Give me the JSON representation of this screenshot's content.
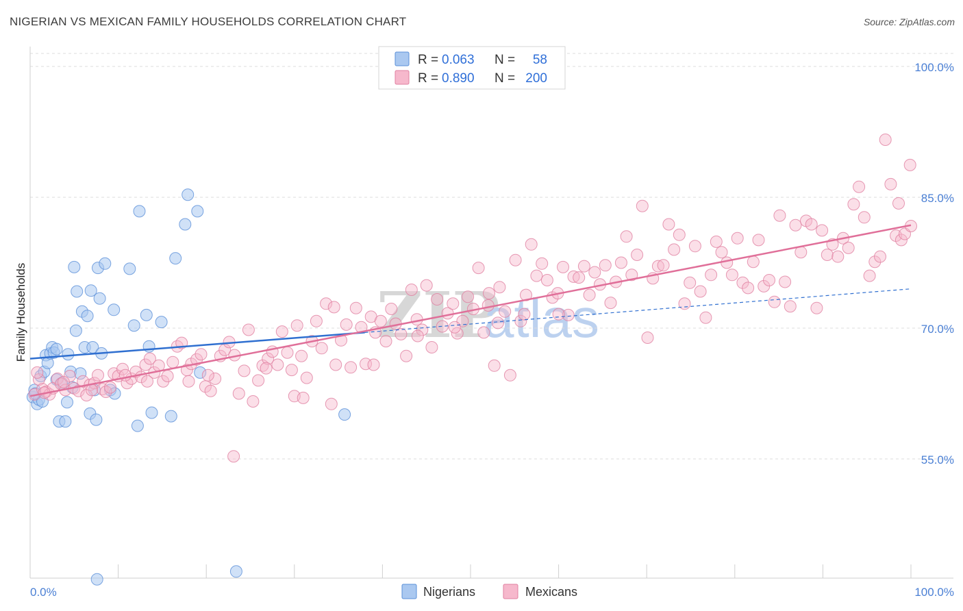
{
  "title": "NIGERIAN VS MEXICAN FAMILY HOUSEHOLDS CORRELATION CHART",
  "source": "Source: ZipAtlas.com",
  "watermark": {
    "zip": "ZIP",
    "atlas": "atlas"
  },
  "chart_data": {
    "type": "scatter",
    "title": "NIGERIAN VS MEXICAN FAMILY HOUSEHOLDS CORRELATION CHART",
    "xlabel": "",
    "ylabel": "Family Households",
    "xlim": [
      0,
      100
    ],
    "ylim": [
      40,
      102
    ],
    "x_tick_labels": {
      "left": "0.0%",
      "right": "100.0%"
    },
    "y_ticks": [
      {
        "value": 100,
        "label": "100.0%"
      },
      {
        "value": 85,
        "label": "85.0%"
      },
      {
        "value": 70,
        "label": "70.0%"
      },
      {
        "value": 55,
        "label": "55.0%"
      }
    ],
    "legend_stats": [
      {
        "r_label": "R =",
        "r_value": "0.063",
        "n_label": "N =",
        "n_value": "58",
        "color": "#aac8f0",
        "edge": "#5a8fd8"
      },
      {
        "r_label": "R =",
        "r_value": "0.890",
        "n_label": "N =",
        "n_value": "200",
        "color": "#f6b8cc",
        "edge": "#e07fa0"
      }
    ],
    "series": [
      {
        "name": "Nigerians",
        "color": "#aac8f0",
        "edge": "#5a8fd8",
        "line_color": "#2f6fd0",
        "trend": {
          "x0": 0,
          "y0": 66.5,
          "x1": 38,
          "y1": 69.5,
          "dash_to_x": 100,
          "dash_to_y": 74.5
        },
        "points": [
          [
            0.3,
            62.1
          ],
          [
            0.5,
            62.9
          ],
          [
            0.8,
            61.3
          ],
          [
            1.2,
            64.5
          ],
          [
            1.0,
            61.8
          ],
          [
            1.6,
            65.0
          ],
          [
            1.8,
            66.9
          ],
          [
            2.0,
            66.0
          ],
          [
            2.3,
            67.1
          ],
          [
            2.5,
            67.8
          ],
          [
            2.7,
            67.2
          ],
          [
            3.0,
            67.6
          ],
          [
            3.3,
            59.3
          ],
          [
            3.0,
            64.1
          ],
          [
            3.6,
            63.7
          ],
          [
            4.0,
            59.3
          ],
          [
            4.2,
            61.5
          ],
          [
            4.3,
            67.0
          ],
          [
            4.6,
            65.0
          ],
          [
            4.8,
            63.2
          ],
          [
            5.0,
            77.0
          ],
          [
            5.2,
            69.7
          ],
          [
            5.3,
            74.2
          ],
          [
            5.7,
            64.8
          ],
          [
            5.9,
            71.9
          ],
          [
            6.2,
            67.8
          ],
          [
            6.5,
            71.4
          ],
          [
            6.8,
            60.2
          ],
          [
            6.9,
            74.3
          ],
          [
            7.1,
            67.8
          ],
          [
            7.3,
            62.9
          ],
          [
            7.5,
            59.5
          ],
          [
            7.7,
            76.9
          ],
          [
            7.9,
            73.4
          ],
          [
            8.1,
            67.1
          ],
          [
            8.5,
            77.4
          ],
          [
            9.1,
            62.9
          ],
          [
            9.5,
            72.1
          ],
          [
            9.6,
            62.5
          ],
          [
            11.3,
            76.8
          ],
          [
            11.8,
            70.3
          ],
          [
            12.2,
            58.8
          ],
          [
            12.4,
            83.4
          ],
          [
            13.2,
            71.5
          ],
          [
            13.5,
            67.9
          ],
          [
            13.8,
            60.3
          ],
          [
            14.9,
            70.7
          ],
          [
            16.0,
            59.9
          ],
          [
            16.5,
            78.0
          ],
          [
            17.6,
            81.9
          ],
          [
            17.9,
            85.3
          ],
          [
            19.0,
            83.4
          ],
          [
            19.3,
            64.9
          ],
          [
            23.4,
            42.1
          ],
          [
            35.7,
            60.1
          ],
          [
            7.6,
            41.2
          ],
          [
            0.6,
            62.5
          ],
          [
            1.4,
            61.6
          ]
        ]
      },
      {
        "name": "Mexicans",
        "color": "#f6b8cc",
        "edge": "#e07fa0",
        "line_color": "#e06f99",
        "trend": {
          "x0": 0,
          "y0": 62.2,
          "x1": 100,
          "y1": 81.8
        },
        "points": [
          [
            0.5,
            62.4
          ],
          [
            1.0,
            64.1
          ],
          [
            1.4,
            63.0
          ],
          [
            1.8,
            62.7
          ],
          [
            2.2,
            62.4
          ],
          [
            2.6,
            63.1
          ],
          [
            3.1,
            64.2
          ],
          [
            3.5,
            63.6
          ],
          [
            4.0,
            62.9
          ],
          [
            4.5,
            64.5
          ],
          [
            5.0,
            63.1
          ],
          [
            5.5,
            62.8
          ],
          [
            6.0,
            63.9
          ],
          [
            6.4,
            62.3
          ],
          [
            6.8,
            63.5
          ],
          [
            7.3,
            63.7
          ],
          [
            7.7,
            64.6
          ],
          [
            8.2,
            63.0
          ],
          [
            8.6,
            62.7
          ],
          [
            9.1,
            63.2
          ],
          [
            9.5,
            64.8
          ],
          [
            10.0,
            64.5
          ],
          [
            10.5,
            65.3
          ],
          [
            11.0,
            63.7
          ],
          [
            11.5,
            64.2
          ],
          [
            12.0,
            65.0
          ],
          [
            12.6,
            64.4
          ],
          [
            13.1,
            65.8
          ],
          [
            13.6,
            66.5
          ],
          [
            14.1,
            64.9
          ],
          [
            14.6,
            65.7
          ],
          [
            15.1,
            63.9
          ],
          [
            15.6,
            64.5
          ],
          [
            16.2,
            66.1
          ],
          [
            16.7,
            67.9
          ],
          [
            17.2,
            68.3
          ],
          [
            17.8,
            65.2
          ],
          [
            18.3,
            65.9
          ],
          [
            18.9,
            66.4
          ],
          [
            19.4,
            67.0
          ],
          [
            19.9,
            63.3
          ],
          [
            20.5,
            62.8
          ],
          [
            21.0,
            64.2
          ],
          [
            21.6,
            66.8
          ],
          [
            22.1,
            67.5
          ],
          [
            22.6,
            68.4
          ],
          [
            23.2,
            66.9
          ],
          [
            23.7,
            62.5
          ],
          [
            24.3,
            65.1
          ],
          [
            24.8,
            69.8
          ],
          [
            25.3,
            61.6
          ],
          [
            25.9,
            64.0
          ],
          [
            26.4,
            65.7
          ],
          [
            27.0,
            66.5
          ],
          [
            27.5,
            67.3
          ],
          [
            28.1,
            65.8
          ],
          [
            28.6,
            69.6
          ],
          [
            29.2,
            67.2
          ],
          [
            29.7,
            65.2
          ],
          [
            30.3,
            70.3
          ],
          [
            30.8,
            66.8
          ],
          [
            31.4,
            64.3
          ],
          [
            32.0,
            68.5
          ],
          [
            32.5,
            70.8
          ],
          [
            33.1,
            67.7
          ],
          [
            33.6,
            72.8
          ],
          [
            34.2,
            61.3
          ],
          [
            34.7,
            65.8
          ],
          [
            35.3,
            68.6
          ],
          [
            35.9,
            70.4
          ],
          [
            36.4,
            65.5
          ],
          [
            37.0,
            72.3
          ],
          [
            37.6,
            70.1
          ],
          [
            38.1,
            65.9
          ],
          [
            38.7,
            71.3
          ],
          [
            39.2,
            69.5
          ],
          [
            39.8,
            70.8
          ],
          [
            40.4,
            68.5
          ],
          [
            41.0,
            72.2
          ],
          [
            41.5,
            70.5
          ],
          [
            42.1,
            69.3
          ],
          [
            42.7,
            66.8
          ],
          [
            43.3,
            74.4
          ],
          [
            43.9,
            71.0
          ],
          [
            44.5,
            69.8
          ],
          [
            45.0,
            74.9
          ],
          [
            45.6,
            67.8
          ],
          [
            46.2,
            73.3
          ],
          [
            46.8,
            70.2
          ],
          [
            47.4,
            71.7
          ],
          [
            48.0,
            72.8
          ],
          [
            48.5,
            69.4
          ],
          [
            49.1,
            70.8
          ],
          [
            49.7,
            73.6
          ],
          [
            50.3,
            72.2
          ],
          [
            50.9,
            76.9
          ],
          [
            51.5,
            69.5
          ],
          [
            52.1,
            74.0
          ],
          [
            52.7,
            65.7
          ],
          [
            53.3,
            74.7
          ],
          [
            53.9,
            71.9
          ],
          [
            54.5,
            64.6
          ],
          [
            55.1,
            77.8
          ],
          [
            55.7,
            70.8
          ],
          [
            56.3,
            73.8
          ],
          [
            56.9,
            79.6
          ],
          [
            57.5,
            76.0
          ],
          [
            58.1,
            77.4
          ],
          [
            58.7,
            75.5
          ],
          [
            59.3,
            73.5
          ],
          [
            59.9,
            74.0
          ],
          [
            60.5,
            77.0
          ],
          [
            61.1,
            71.5
          ],
          [
            61.7,
            75.9
          ],
          [
            62.3,
            75.8
          ],
          [
            62.9,
            77.1
          ],
          [
            63.5,
            73.8
          ],
          [
            64.1,
            76.4
          ],
          [
            64.7,
            75.0
          ],
          [
            65.3,
            77.2
          ],
          [
            65.9,
            72.9
          ],
          [
            66.5,
            75.3
          ],
          [
            67.1,
            77.5
          ],
          [
            67.7,
            80.5
          ],
          [
            68.3,
            76.1
          ],
          [
            68.9,
            78.4
          ],
          [
            69.5,
            84.0
          ],
          [
            70.1,
            68.9
          ],
          [
            70.7,
            75.7
          ],
          [
            71.3,
            77.1
          ],
          [
            71.9,
            77.2
          ],
          [
            72.5,
            81.9
          ],
          [
            73.1,
            79.0
          ],
          [
            73.7,
            80.7
          ],
          [
            74.3,
            72.8
          ],
          [
            74.9,
            75.2
          ],
          [
            75.5,
            79.4
          ],
          [
            76.1,
            74.2
          ],
          [
            76.7,
            71.2
          ],
          [
            77.3,
            76.1
          ],
          [
            77.9,
            79.9
          ],
          [
            78.5,
            78.7
          ],
          [
            79.1,
            77.5
          ],
          [
            79.7,
            76.1
          ],
          [
            80.3,
            80.3
          ],
          [
            80.9,
            75.2
          ],
          [
            81.5,
            74.6
          ],
          [
            82.1,
            77.6
          ],
          [
            82.7,
            80.1
          ],
          [
            83.3,
            74.8
          ],
          [
            83.9,
            75.5
          ],
          [
            84.5,
            73.0
          ],
          [
            85.1,
            82.9
          ],
          [
            85.7,
            75.3
          ],
          [
            86.3,
            72.5
          ],
          [
            86.9,
            81.8
          ],
          [
            87.5,
            78.7
          ],
          [
            88.1,
            82.3
          ],
          [
            88.7,
            81.9
          ],
          [
            89.3,
            72.3
          ],
          [
            89.9,
            81.2
          ],
          [
            90.5,
            78.4
          ],
          [
            91.1,
            79.6
          ],
          [
            91.7,
            78.2
          ],
          [
            92.3,
            80.3
          ],
          [
            92.9,
            79.2
          ],
          [
            93.5,
            84.2
          ],
          [
            94.1,
            86.2
          ],
          [
            94.7,
            82.7
          ],
          [
            95.3,
            76.0
          ],
          [
            95.9,
            77.6
          ],
          [
            96.5,
            78.2
          ],
          [
            97.1,
            91.6
          ],
          [
            97.7,
            86.5
          ],
          [
            98.3,
            80.6
          ],
          [
            98.9,
            80.1
          ],
          [
            99.3,
            80.8
          ],
          [
            100.0,
            81.7
          ],
          [
            99.9,
            88.7
          ],
          [
            98.6,
            84.3
          ],
          [
            0.8,
            64.9
          ],
          [
            1.6,
            62.6
          ],
          [
            3.8,
            63.8
          ],
          [
            7.0,
            62.9
          ],
          [
            10.8,
            64.6
          ],
          [
            13.3,
            63.9
          ],
          [
            18.0,
            63.9
          ],
          [
            20.2,
            64.6
          ],
          [
            23.1,
            55.3
          ],
          [
            26.8,
            65.4
          ],
          [
            30.0,
            62.2
          ],
          [
            31.0,
            62.0
          ],
          [
            34.5,
            72.4
          ],
          [
            39.0,
            65.8
          ],
          [
            44.0,
            69.1
          ],
          [
            48.2,
            70.1
          ],
          [
            52.0,
            72.6
          ],
          [
            53.1,
            70.6
          ],
          [
            56.1,
            71.6
          ],
          [
            60.0,
            71.6
          ]
        ]
      }
    ],
    "bottom_legend": [
      "Nigerians",
      "Mexicans"
    ]
  }
}
